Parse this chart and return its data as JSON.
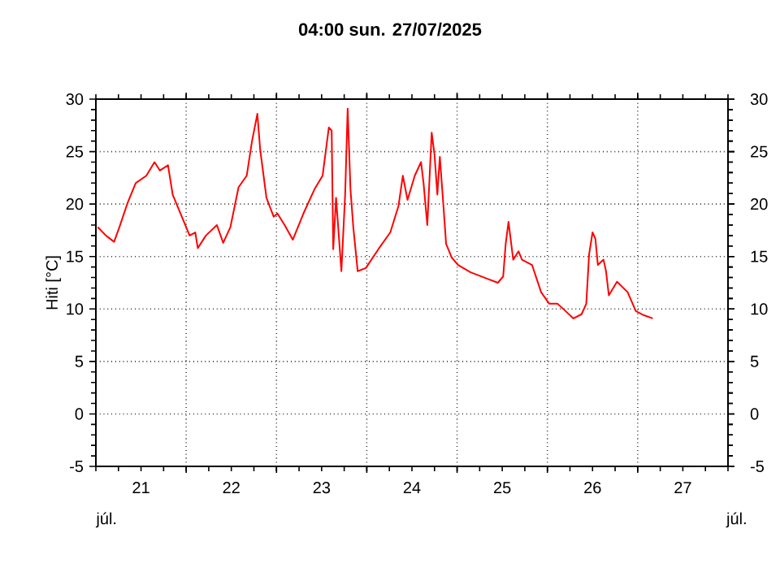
{
  "chart_data": {
    "type": "line",
    "title": "04:00   sun.  27/07/2025",
    "ylabel": "Hiti [°C]",
    "annotations": [
      "júl.",
      "júl."
    ],
    "xlim": [
      "2025-07-21T00:00",
      "2025-07-28T00:00"
    ],
    "xticks": [
      {
        "value": "2025-07-22T00:00",
        "label": null
      },
      {
        "value": "2025-07-23T00:00",
        "label": null
      },
      {
        "value": "2025-07-24T00:00",
        "label": null
      },
      {
        "value": "2025-07-25T00:00",
        "label": null
      },
      {
        "value": "2025-07-26T00:00",
        "label": null
      },
      {
        "value": "2025-07-27T00:00",
        "label": null
      },
      {
        "value": "2025-07-21T12:00",
        "label": "21"
      },
      {
        "value": "2025-07-22T12:00",
        "label": "22"
      },
      {
        "value": "2025-07-23T12:00",
        "label": "23"
      },
      {
        "value": "2025-07-24T12:00",
        "label": "24"
      },
      {
        "value": "2025-07-25T12:00",
        "label": "25"
      },
      {
        "value": "2025-07-26T12:00",
        "label": "26"
      },
      {
        "value": "2025-07-27T12:00",
        "label": "27"
      }
    ],
    "ylim": [
      -5,
      30
    ],
    "yticks": [
      -5,
      0,
      5,
      10,
      15,
      20,
      25,
      30
    ],
    "y2lim": [
      -5,
      30
    ],
    "y2ticks": [
      -5,
      0,
      5,
      10,
      15,
      20,
      25,
      30
    ],
    "grid": true,
    "x": [
      "2025-07-21T00:30",
      "2025-07-21T02:40",
      "2025-07-21T04:50",
      "2025-07-21T06:15",
      "2025-07-21T08:25",
      "2025-07-21T10:35",
      "2025-07-21T13:25",
      "2025-07-21T15:35",
      "2025-07-21T17:00",
      "2025-07-21T19:10",
      "2025-07-21T20:25",
      "2025-07-21T22:50",
      "2025-07-22T00:55",
      "2025-07-22T02:25",
      "2025-07-22T03:05",
      "2025-07-22T05:15",
      "2025-07-22T08:10",
      "2025-07-22T09:50",
      "2025-07-22T11:45",
      "2025-07-22T13:55",
      "2025-07-22T16:05",
      "2025-07-22T17:30",
      "2025-07-22T18:55",
      "2025-07-22T19:40",
      "2025-07-22T21:20",
      "2025-07-22T23:15",
      "2025-07-23T00:15",
      "2025-07-23T02:10",
      "2025-07-23T04:20",
      "2025-07-23T07:10",
      "2025-07-23T10:05",
      "2025-07-23T12:15",
      "2025-07-23T13:55",
      "2025-07-23T14:40",
      "2025-07-23T15:05",
      "2025-07-23T15:50",
      "2025-07-23T17:15",
      "2025-07-23T18:15",
      "2025-07-23T18:55",
      "2025-07-23T19:40",
      "2025-07-23T20:25",
      "2025-07-23T21:35",
      "2025-07-23T23:45",
      "2025-07-24T03:05",
      "2025-07-24T06:15",
      "2025-07-24T08:25",
      "2025-07-24T09:35",
      "2025-07-24T10:50",
      "2025-07-24T12:45",
      "2025-07-24T14:25",
      "2025-07-24T15:05",
      "2025-07-24T16:05",
      "2025-07-24T17:15",
      "2025-07-24T18:00",
      "2025-07-24T18:45",
      "2025-07-24T19:25",
      "2025-07-24T20:25",
      "2025-07-24T21:05",
      "2025-07-24T22:35",
      "2025-07-25T00:15",
      "2025-07-25T03:35",
      "2025-07-25T07:55",
      "2025-07-25T10:50",
      "2025-07-25T12:15",
      "2025-07-25T12:55",
      "2025-07-25T13:40",
      "2025-07-25T14:55",
      "2025-07-25T16:20",
      "2025-07-25T17:15",
      "2025-07-25T19:55",
      "2025-07-25T22:20",
      "2025-07-26T00:30",
      "2025-07-26T02:40",
      "2025-07-26T04:50",
      "2025-07-26T06:55",
      "2025-07-26T09:05",
      "2025-07-26T10:20",
      "2025-07-26T11:05",
      "2025-07-26T12:00",
      "2025-07-26T12:45",
      "2025-07-26T13:25",
      "2025-07-26T14:55",
      "2025-07-26T15:35",
      "2025-07-26T16:20",
      "2025-07-26T18:30",
      "2025-07-26T21:20",
      "2025-07-26T23:30",
      "2025-07-27T01:40",
      "2025-07-27T04:00"
    ],
    "series": [
      {
        "color": "#ff0000",
        "values": [
          17.8,
          17.0,
          16.4,
          17.8,
          20.1,
          22.0,
          22.7,
          24.0,
          23.2,
          23.7,
          20.9,
          18.8,
          17.0,
          17.3,
          15.8,
          17.0,
          18.0,
          16.3,
          17.8,
          21.6,
          22.7,
          26.0,
          28.6,
          25.2,
          20.6,
          18.8,
          19.1,
          18.0,
          16.6,
          19.1,
          21.4,
          22.7,
          27.3,
          27.0,
          15.7,
          20.6,
          13.6,
          20.9,
          29.1,
          21.4,
          17.8,
          13.6,
          13.9,
          15.7,
          17.3,
          19.8,
          22.7,
          20.4,
          22.7,
          24.0,
          22.0,
          18.0,
          26.8,
          24.7,
          20.9,
          24.5,
          19.6,
          16.2,
          14.9,
          14.2,
          13.5,
          12.9,
          12.5,
          13.1,
          16.2,
          18.3,
          14.7,
          15.5,
          14.7,
          14.2,
          11.6,
          10.5,
          10.5,
          9.8,
          9.1,
          9.5,
          10.5,
          15.2,
          17.3,
          16.7,
          14.2,
          14.7,
          13.6,
          11.3,
          12.6,
          11.6,
          9.8,
          9.4,
          9.1
        ]
      }
    ]
  }
}
